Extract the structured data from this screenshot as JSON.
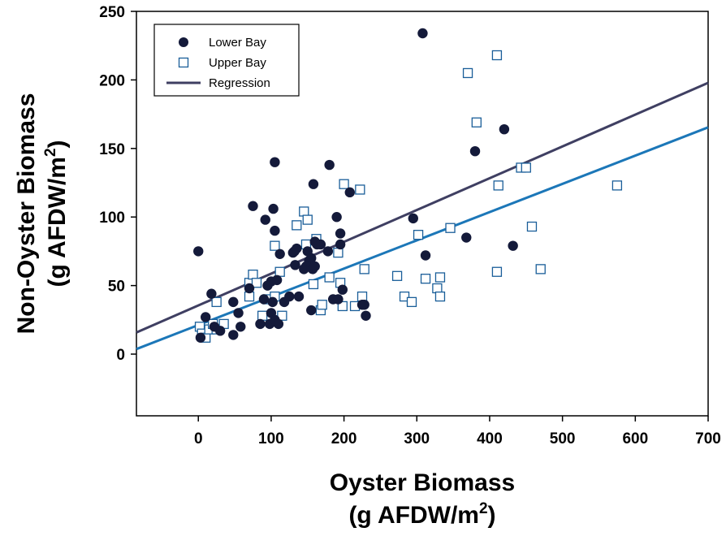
{
  "chart_data": {
    "type": "scatter",
    "xlabel_line1": "Oyster Biomass",
    "xlabel_line2_prefix": "(g AFDW/m",
    "xlabel_line2_suffix": ")",
    "ylabel_line1": "Non-Oyster Biomass",
    "ylabel_line2_prefix": "(g AFDW/m",
    "ylabel_line2_suffix": ")",
    "superscript": "2",
    "xlim": [
      -85,
      700
    ],
    "ylim": [
      -45,
      250
    ],
    "xticks": [
      0,
      100,
      200,
      300,
      400,
      500,
      600,
      700
    ],
    "yticks": [
      0,
      50,
      100,
      150,
      200,
      250
    ],
    "grid": false,
    "legend_position": "top-left",
    "series": [
      {
        "name": "Lower Bay",
        "marker": "filled-circle",
        "color": "#141a3a",
        "points": [
          [
            0,
            75
          ],
          [
            3,
            12
          ],
          [
            10,
            27
          ],
          [
            18,
            44
          ],
          [
            22,
            20
          ],
          [
            30,
            17
          ],
          [
            48,
            38
          ],
          [
            48,
            14
          ],
          [
            55,
            30
          ],
          [
            58,
            20
          ],
          [
            70,
            48
          ],
          [
            75,
            108
          ],
          [
            85,
            22
          ],
          [
            90,
            40
          ],
          [
            92,
            98
          ],
          [
            95,
            50
          ],
          [
            98,
            22
          ],
          [
            100,
            53
          ],
          [
            100,
            30
          ],
          [
            102,
            38
          ],
          [
            103,
            106
          ],
          [
            105,
            140
          ],
          [
            105,
            90
          ],
          [
            105,
            25
          ],
          [
            108,
            54
          ],
          [
            110,
            22
          ],
          [
            112,
            73
          ],
          [
            118,
            38
          ],
          [
            125,
            42
          ],
          [
            130,
            74
          ],
          [
            132,
            75
          ],
          [
            133,
            65
          ],
          [
            135,
            77
          ],
          [
            138,
            42
          ],
          [
            145,
            62
          ],
          [
            148,
            64
          ],
          [
            150,
            75
          ],
          [
            152,
            68
          ],
          [
            155,
            70
          ],
          [
            155,
            32
          ],
          [
            157,
            62
          ],
          [
            158,
            124
          ],
          [
            160,
            64
          ],
          [
            160,
            82
          ],
          [
            163,
            80
          ],
          [
            168,
            80
          ],
          [
            178,
            75
          ],
          [
            180,
            138
          ],
          [
            185,
            40
          ],
          [
            190,
            100
          ],
          [
            192,
            40
          ],
          [
            195,
            80
          ],
          [
            195,
            88
          ],
          [
            198,
            47
          ],
          [
            208,
            118
          ],
          [
            225,
            36
          ],
          [
            228,
            36
          ],
          [
            230,
            28
          ],
          [
            295,
            99
          ],
          [
            308,
            234
          ],
          [
            312,
            72
          ],
          [
            368,
            85
          ],
          [
            380,
            148
          ],
          [
            420,
            164
          ],
          [
            432,
            79
          ]
        ]
      },
      {
        "name": "Upper Bay",
        "marker": "open-square",
        "color": "#1a5e99",
        "points": [
          [
            2,
            20
          ],
          [
            5,
            15
          ],
          [
            10,
            12
          ],
          [
            15,
            18
          ],
          [
            20,
            22
          ],
          [
            25,
            38
          ],
          [
            25,
            18
          ],
          [
            35,
            22
          ],
          [
            70,
            42
          ],
          [
            70,
            52
          ],
          [
            75,
            58
          ],
          [
            80,
            52
          ],
          [
            88,
            28
          ],
          [
            95,
            40
          ],
          [
            105,
            42
          ],
          [
            105,
            79
          ],
          [
            112,
            60
          ],
          [
            115,
            28
          ],
          [
            135,
            94
          ],
          [
            145,
            104
          ],
          [
            148,
            80
          ],
          [
            150,
            98
          ],
          [
            158,
            51
          ],
          [
            162,
            84
          ],
          [
            168,
            32
          ],
          [
            170,
            36
          ],
          [
            180,
            56
          ],
          [
            192,
            74
          ],
          [
            195,
            52
          ],
          [
            198,
            35
          ],
          [
            200,
            124
          ],
          [
            215,
            35
          ],
          [
            222,
            120
          ],
          [
            225,
            42
          ],
          [
            228,
            62
          ],
          [
            273,
            57
          ],
          [
            283,
            42
          ],
          [
            293,
            38
          ],
          [
            302,
            87
          ],
          [
            312,
            55
          ],
          [
            328,
            48
          ],
          [
            332,
            56
          ],
          [
            332,
            42
          ],
          [
            346,
            92
          ],
          [
            370,
            205
          ],
          [
            382,
            169
          ],
          [
            410,
            218
          ],
          [
            410,
            60
          ],
          [
            412,
            123
          ],
          [
            443,
            136
          ],
          [
            450,
            136
          ],
          [
            458,
            93
          ],
          [
            470,
            62
          ],
          [
            575,
            123
          ]
        ]
      }
    ],
    "regressions": [
      {
        "series": "Lower Bay",
        "name": "Regression",
        "color": "#3f3f62",
        "intercept": 35.5,
        "slope": 0.232
      },
      {
        "series": "Upper Bay",
        "color": "#1c77b8",
        "intercept": 21.2,
        "slope": 0.206
      }
    ],
    "legend": [
      {
        "label": "Lower Bay",
        "marker": "filled-circle"
      },
      {
        "label": "Upper Bay",
        "marker": "open-square"
      },
      {
        "label": "Regression",
        "marker": "line"
      }
    ]
  }
}
